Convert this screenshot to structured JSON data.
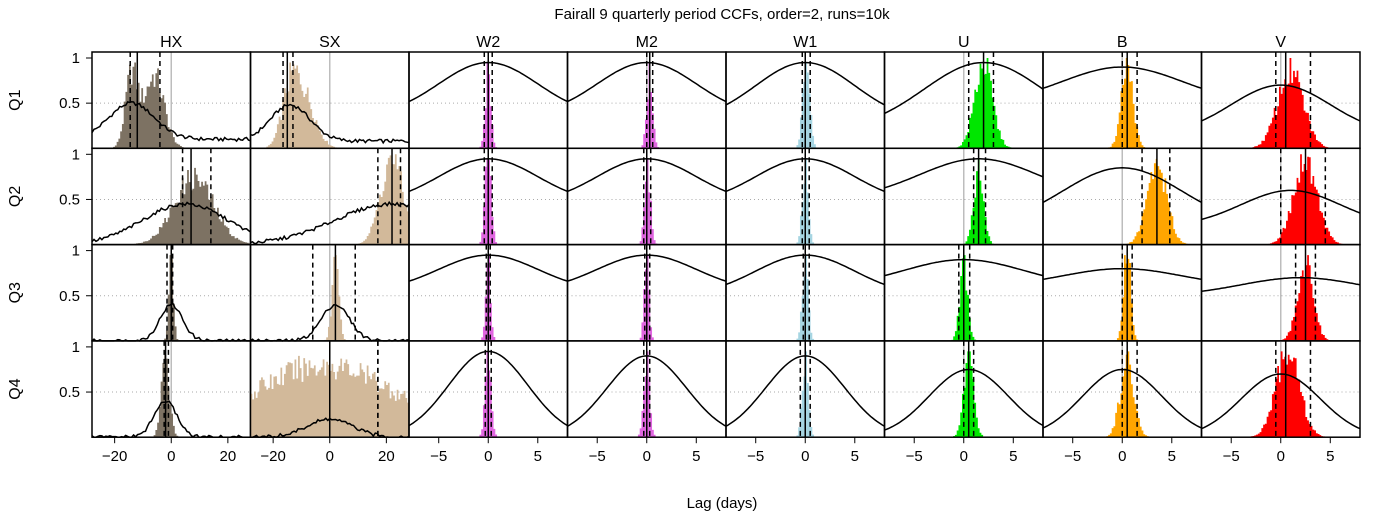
{
  "chart_data": {
    "type": "grid-of-histograms-and-lines",
    "title": "Fairall 9 quarterly period CCFs, order=2, runs=10k",
    "xlabel": "Lag (days)",
    "columns": [
      {
        "name": "HX",
        "color": "#7d7263",
        "xlim": [
          -28,
          28
        ],
        "ticks": [
          -20,
          0,
          20
        ],
        "tick_labels": [
          "−20",
          "0",
          "20"
        ]
      },
      {
        "name": "SX",
        "color": "#d2b99a",
        "xlim": [
          -28,
          28
        ],
        "ticks": [
          -20,
          0,
          20
        ],
        "tick_labels": [
          "−20",
          "0",
          "20"
        ]
      },
      {
        "name": "W2",
        "color": "#e066e0",
        "xlim": [
          -8,
          8
        ],
        "ticks": [
          -5,
          0,
          5
        ],
        "tick_labels": [
          "−5",
          "0",
          "5"
        ]
      },
      {
        "name": "M2",
        "color": "#e066e0",
        "xlim": [
          -8,
          8
        ],
        "ticks": [
          -5,
          0,
          5
        ],
        "tick_labels": [
          "−5",
          "0",
          "5"
        ]
      },
      {
        "name": "W1",
        "color": "#a6d5e2",
        "xlim": [
          -8,
          8
        ],
        "ticks": [
          -5,
          0,
          5
        ],
        "tick_labels": [
          "−5",
          "0",
          "5"
        ]
      },
      {
        "name": "U",
        "color": "#00e600",
        "xlim": [
          -8,
          8
        ],
        "ticks": [
          -5,
          0,
          5
        ],
        "tick_labels": [
          "−5",
          "0",
          "5"
        ]
      },
      {
        "name": "B",
        "color": "#ffa500",
        "xlim": [
          -8,
          8
        ],
        "ticks": [
          -5,
          0,
          5
        ],
        "tick_labels": [
          "−5",
          "0",
          "5"
        ]
      },
      {
        "name": "V",
        "color": "#ff0000",
        "xlim": [
          -8,
          8
        ],
        "ticks": [
          -5,
          0,
          5
        ],
        "tick_labels": [
          "−5",
          "0",
          "5"
        ]
      }
    ],
    "rows": [
      "Q1",
      "Q2",
      "Q3",
      "Q4"
    ],
    "ylim": [
      0,
      1
    ],
    "yticks": [
      0.5,
      1
    ],
    "ytick_labels": [
      "0.5",
      "1"
    ],
    "grid": "dotted horizontal at 0.5",
    "panels": [
      [
        {
          "hist": [
            [
              -14,
              2.2
            ],
            [
              -6,
              3.5
            ]
          ],
          "hist_h": 0.95,
          "ccf": {
            "peak": -14,
            "w": 8,
            "h": 0.5,
            "base": 0.1
          },
          "median": -12,
          "dash": [
            -14.5,
            -4
          ]
        },
        {
          "hist": [
            [
              -14,
              3
            ],
            [
              -9,
              4
            ]
          ],
          "hist_h": 0.95,
          "ccf": {
            "peak": -14,
            "w": 7,
            "h": 0.48,
            "base": 0.08
          },
          "median": -15,
          "dash": [
            -16.5,
            -13
          ]
        },
        {
          "hist": [
            [
              0,
              0.28
            ]
          ],
          "hist_h": 0.95,
          "ccf": {
            "peak": 0,
            "w": 5,
            "h": 0.95,
            "base": 0.35,
            "kind": "broad"
          },
          "median": 0,
          "dash": [
            -0.4,
            0.4
          ]
        },
        {
          "hist": [
            [
              0.3,
              0.3
            ]
          ],
          "hist_h": 0.95,
          "ccf": {
            "peak": 0,
            "w": 5,
            "h": 0.95,
            "base": 0.35,
            "kind": "broad"
          },
          "median": 0.3,
          "dash": [
            0,
            0.6
          ]
        },
        {
          "hist": [
            [
              0.1,
              0.35
            ]
          ],
          "hist_h": 0.95,
          "ccf": {
            "peak": 0,
            "w": 5,
            "h": 0.95,
            "base": 0.3,
            "kind": "broad"
          },
          "median": 0,
          "dash": [
            -0.3,
            0.5
          ]
        },
        {
          "hist": [
            [
              2,
              0.9
            ]
          ],
          "hist_h": 1.0,
          "ccf": {
            "peak": 2,
            "w": 6,
            "h": 0.95,
            "base": 0.2,
            "kind": "broad"
          },
          "median": 2,
          "dash": [
            0.5,
            3
          ]
        },
        {
          "hist": [
            [
              0.5,
              0.6
            ]
          ],
          "hist_h": 1.0,
          "ccf": {
            "peak": 0,
            "w": 6,
            "h": 0.9,
            "base": 0.5,
            "kind": "broad"
          },
          "median": 0.5,
          "dash": [
            0,
            1.5
          ]
        },
        {
          "hist": [
            [
              1,
              1.3
            ]
          ],
          "hist_h": 1.0,
          "ccf": {
            "peak": 0,
            "w": 5,
            "h": 0.7,
            "base": 0.15,
            "kind": "broad"
          },
          "median": 0.5,
          "dash": [
            -0.5,
            3
          ]
        }
      ],
      [
        {
          "hist": [
            [
              8,
              7
            ]
          ],
          "hist_h": 0.85,
          "ccf": {
            "peak": 5,
            "w": 15,
            "h": 0.45,
            "base": 0.0
          },
          "median": 7,
          "dash": [
            4,
            14
          ]
        },
        {
          "hist": [
            [
              22,
              4
            ]
          ],
          "hist_h": 1.0,
          "ccf": {
            "peak": 22,
            "w": 20,
            "h": 0.45,
            "base": 0.0
          },
          "median": 22,
          "dash": [
            17,
            25
          ]
        },
        {
          "hist": [
            [
              0,
              0.3
            ]
          ],
          "hist_h": 0.95,
          "ccf": {
            "peak": 0,
            "w": 5,
            "h": 0.95,
            "base": 0.45,
            "kind": "broad"
          },
          "median": 0,
          "dash": [
            -0.4,
            0.4
          ]
        },
        {
          "hist": [
            [
              0.1,
              0.3
            ]
          ],
          "hist_h": 0.95,
          "ccf": {
            "peak": 0,
            "w": 5,
            "h": 0.95,
            "base": 0.45,
            "kind": "broad"
          },
          "median": 0,
          "dash": [
            -0.3,
            0.4
          ]
        },
        {
          "hist": [
            [
              0,
              0.3
            ]
          ],
          "hist_h": 0.95,
          "ccf": {
            "peak": 0,
            "w": 5,
            "h": 0.95,
            "base": 0.45,
            "kind": "broad"
          },
          "median": 0,
          "dash": [
            -0.3,
            0.4
          ]
        },
        {
          "hist": [
            [
              1.5,
              0.5
            ]
          ],
          "hist_h": 0.95,
          "ccf": {
            "peak": 1.5,
            "w": 6,
            "h": 0.95,
            "base": 0.5,
            "kind": "broad"
          },
          "median": 1.5,
          "dash": [
            1,
            2.2
          ]
        },
        {
          "hist": [
            [
              3.5,
              1.0
            ]
          ],
          "hist_h": 0.95,
          "ccf": {
            "peak": 0,
            "w": 6,
            "h": 0.85,
            "base": 0.2,
            "kind": "broad"
          },
          "median": 3.5,
          "dash": [
            2,
            4.8
          ]
        },
        {
          "hist": [
            [
              2.5,
              1.2
            ]
          ],
          "hist_h": 1.0,
          "ccf": {
            "peak": 1,
            "w": 5,
            "h": 0.6,
            "base": 0.2,
            "kind": "broad"
          },
          "median": 2.5,
          "dash": [
            0,
            4.5
          ]
        }
      ],
      [
        {
          "hist": [
            [
              0,
              0.8
            ]
          ],
          "hist_h": 0.95,
          "ccf": {
            "peak": 0,
            "w": 4,
            "h": 0.4,
            "base": 0.0
          },
          "median": 0,
          "dash": [
            -1.5,
            0.5
          ]
        },
        {
          "hist": [
            [
              2,
              1.2
            ]
          ],
          "hist_h": 0.95,
          "ccf": {
            "peak": 2,
            "w": 5,
            "h": 0.4,
            "base": 0.0
          },
          "median": 2,
          "dash": [
            -6,
            9
          ]
        },
        {
          "hist": [
            [
              0,
              0.25
            ]
          ],
          "hist_h": 0.95,
          "ccf": {
            "peak": 0,
            "w": 5,
            "h": 0.95,
            "base": 0.55,
            "kind": "broad"
          },
          "median": 0,
          "dash": [
            -0.2,
            0.2
          ]
        },
        {
          "hist": [
            [
              0,
              0.25
            ]
          ],
          "hist_h": 0.95,
          "ccf": {
            "peak": 0,
            "w": 5,
            "h": 0.95,
            "base": 0.55,
            "kind": "broad"
          },
          "median": 0,
          "dash": [
            -0.2,
            0.3
          ]
        },
        {
          "hist": [
            [
              0,
              0.3
            ]
          ],
          "hist_h": 0.95,
          "ccf": {
            "peak": 0,
            "w": 5,
            "h": 0.95,
            "base": 0.5,
            "kind": "broad"
          },
          "median": 0,
          "dash": [
            -0.2,
            0.4
          ]
        },
        {
          "hist": [
            [
              0,
              0.4
            ]
          ],
          "hist_h": 0.95,
          "ccf": {
            "peak": 0,
            "w": 6,
            "h": 0.9,
            "base": 0.6,
            "kind": "broad"
          },
          "median": 0,
          "dash": [
            -0.5,
            0.6
          ]
        },
        {
          "hist": [
            [
              0.5,
              0.35
            ]
          ],
          "hist_h": 0.95,
          "ccf": {
            "peak": 0,
            "w": 6,
            "h": 0.8,
            "base": 0.6,
            "kind": "broad"
          },
          "median": 0.5,
          "dash": [
            0,
            1
          ]
        },
        {
          "hist": [
            [
              2.5,
              0.8
            ]
          ],
          "hist_h": 0.95,
          "ccf": {
            "peak": 2,
            "w": 6,
            "h": 0.7,
            "base": 0.5,
            "kind": "broad"
          },
          "median": 2.5,
          "dash": [
            1.5,
            3.5
          ]
        }
      ],
      [
        {
          "hist": [
            [
              -2,
              1.5
            ]
          ],
          "hist_h": 0.95,
          "ccf": {
            "peak": -2,
            "w": 4,
            "h": 0.4,
            "base": 0.0
          },
          "median": -2,
          "dash": [
            -2.5,
            -1
          ]
        },
        {
          "hist": [
            [
              -2,
              26
            ]
          ],
          "hist_h": 0.9,
          "ccf": {
            "peak": 0,
            "w": 8,
            "h": 0.2,
            "base": 0.0
          },
          "median": 0,
          "dash": [
            17,
            17
          ]
        },
        {
          "hist": [
            [
              0,
              0.3
            ]
          ],
          "hist_h": 0.95,
          "ccf": {
            "peak": 0,
            "w": 4,
            "h": 0.95,
            "base": 0.0,
            "kind": "broad"
          },
          "median": 0,
          "dash": [
            -0.3,
            0.3
          ]
        },
        {
          "hist": [
            [
              0,
              0.3
            ]
          ],
          "hist_h": 0.95,
          "ccf": {
            "peak": 0,
            "w": 4,
            "h": 0.9,
            "base": 0.0,
            "kind": "broad"
          },
          "median": 0,
          "dash": [
            -0.3,
            0.3
          ]
        },
        {
          "hist": [
            [
              0,
              0.3
            ]
          ],
          "hist_h": 0.95,
          "ccf": {
            "peak": 0,
            "w": 4,
            "h": 0.9,
            "base": 0.0,
            "kind": "broad"
          },
          "median": 0,
          "dash": [
            -0.5,
            0.5
          ]
        },
        {
          "hist": [
            [
              0.5,
              0.5
            ]
          ],
          "hist_h": 0.95,
          "ccf": {
            "peak": 0.5,
            "w": 4,
            "h": 0.75,
            "base": 0.0,
            "kind": "broad"
          },
          "median": 0.5,
          "dash": [
            0,
            1
          ]
        },
        {
          "hist": [
            [
              0.5,
              0.7
            ]
          ],
          "hist_h": 0.95,
          "ccf": {
            "peak": 0,
            "w": 4,
            "h": 0.75,
            "base": 0.0,
            "kind": "broad"
          },
          "median": 0.5,
          "dash": [
            0,
            1.5
          ]
        },
        {
          "hist": [
            [
              0.7,
              1.2
            ]
          ],
          "hist_h": 0.95,
          "ccf": {
            "peak": 0,
            "w": 4,
            "h": 0.7,
            "base": 0.0,
            "kind": "broad"
          },
          "median": 0.5,
          "dash": [
            -0.5,
            3
          ]
        }
      ]
    ]
  }
}
